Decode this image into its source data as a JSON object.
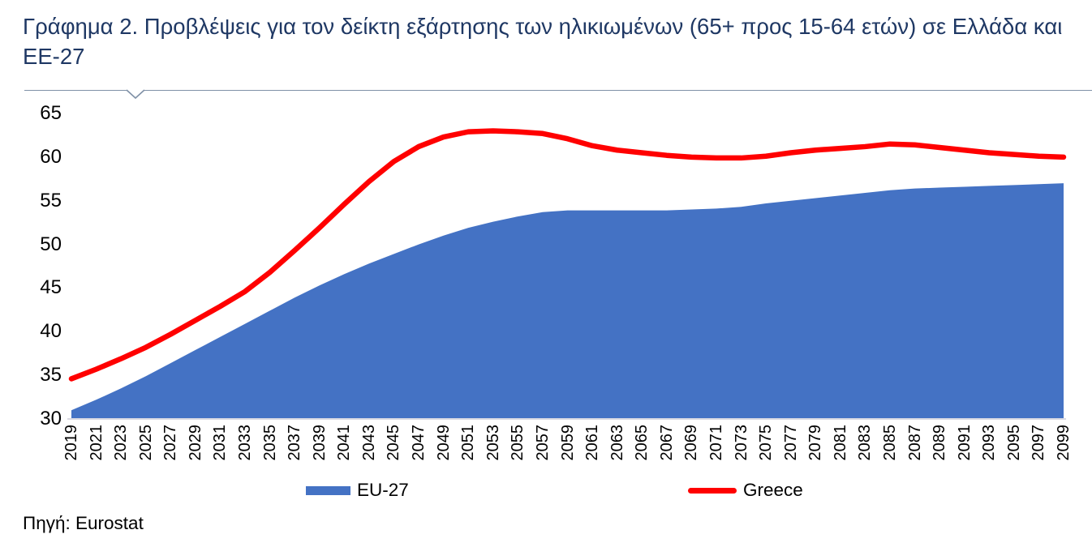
{
  "title": "Γράφημα 2. Προβλέψεις για τον δείκτη εξάρτησης των ηλικιωμένων (65+ προς 15-64 ετών) σε Ελλάδα και ΕΕ-27",
  "source": "Πηγή: Eurostat",
  "legend": [
    {
      "label": "EU-27",
      "color": "#4472C4",
      "type": "area"
    },
    {
      "label": "Greece",
      "color": "#FF0000",
      "type": "line"
    }
  ],
  "colors": {
    "area_fill": "#4472C4",
    "line_stroke": "#FF0000",
    "title_text": "#1F3864",
    "axis_text": "#000000",
    "axis_line": "#D9D9E3",
    "divider": "#8091A7"
  },
  "chart_data": {
    "type": "area",
    "title": "Γράφημα 2. Προβλέψεις για τον δείκτη εξάρτησης των ηλικιωμένων (65+ προς 15-64 ετών) σε Ελλάδα και ΕΕ-27",
    "xlabel": "",
    "ylabel": "",
    "ylim": [
      30,
      65
    ],
    "yticks": [
      30,
      35,
      40,
      45,
      50,
      55,
      60,
      65
    ],
    "grid": false,
    "legend_position": "bottom",
    "x": [
      2019,
      2021,
      2023,
      2025,
      2027,
      2029,
      2031,
      2033,
      2035,
      2037,
      2039,
      2041,
      2043,
      2045,
      2047,
      2049,
      2051,
      2053,
      2055,
      2057,
      2059,
      2061,
      2063,
      2065,
      2067,
      2069,
      2071,
      2073,
      2075,
      2077,
      2079,
      2081,
      2083,
      2085,
      2087,
      2089,
      2091,
      2093,
      2095,
      2097,
      2099
    ],
    "series": [
      {
        "name": "EU-27",
        "type": "area",
        "color": "#4472C4",
        "values": [
          31.0,
          32.2,
          33.5,
          34.9,
          36.4,
          37.9,
          39.4,
          40.9,
          42.4,
          43.9,
          45.3,
          46.6,
          47.8,
          48.9,
          50.0,
          51.0,
          51.9,
          52.6,
          53.2,
          53.7,
          53.9,
          53.9,
          53.9,
          53.9,
          53.9,
          54.0,
          54.1,
          54.3,
          54.7,
          55.0,
          55.3,
          55.6,
          55.9,
          56.2,
          56.4,
          56.5,
          56.6,
          56.7,
          56.8,
          56.9,
          57.0
        ]
      },
      {
        "name": "Greece",
        "type": "line",
        "color": "#FF0000",
        "values": [
          34.6,
          35.7,
          36.9,
          38.2,
          39.7,
          41.3,
          42.9,
          44.6,
          46.8,
          49.3,
          51.9,
          54.6,
          57.2,
          59.5,
          61.2,
          62.3,
          62.9,
          63.0,
          62.9,
          62.7,
          62.1,
          61.3,
          60.8,
          60.5,
          60.2,
          60.0,
          59.9,
          59.9,
          60.1,
          60.5,
          60.8,
          61.0,
          61.2,
          61.5,
          61.4,
          61.1,
          60.8,
          60.5,
          60.3,
          60.1,
          60.0
        ]
      }
    ]
  }
}
